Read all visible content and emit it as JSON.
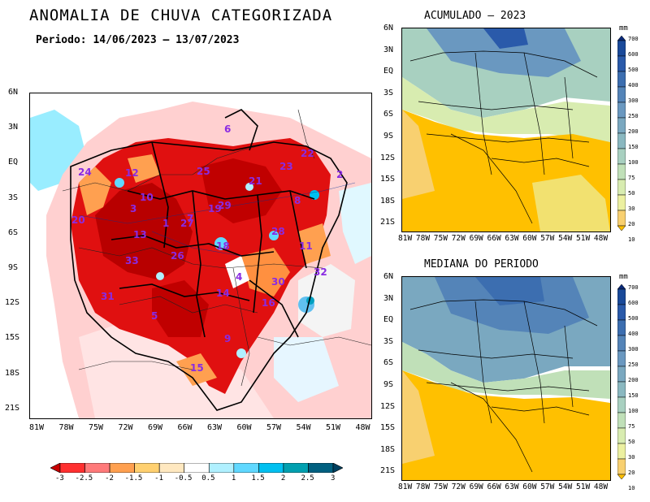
{
  "main_map": {
    "title": "ANOMALIA DE CHUVA CATEGORIZADA",
    "period": "Periodo: 14/06/2023 – 13/07/2023",
    "y_ticks": [
      "6N",
      "3N",
      "EQ",
      "3S",
      "6S",
      "9S",
      "12S",
      "15S",
      "18S",
      "21S"
    ],
    "x_ticks": [
      "81W",
      "78W",
      "75W",
      "72W",
      "69W",
      "66W",
      "63W",
      "60W",
      "57W",
      "54W",
      "51W",
      "48W"
    ],
    "basin_labels": [
      {
        "id": "basin-1",
        "text": "1"
      },
      {
        "id": "basin-2",
        "text": "2"
      },
      {
        "id": "basin-3",
        "text": "3"
      },
      {
        "id": "basin-4",
        "text": "4"
      },
      {
        "id": "basin-5",
        "text": "5"
      },
      {
        "id": "basin-6",
        "text": "6"
      },
      {
        "id": "basin-7",
        "text": "7"
      },
      {
        "id": "basin-8",
        "text": "8"
      },
      {
        "id": "basin-9",
        "text": "9"
      },
      {
        "id": "basin-10",
        "text": "10"
      },
      {
        "id": "basin-11",
        "text": "11"
      },
      {
        "id": "basin-12",
        "text": "12"
      },
      {
        "id": "basin-13",
        "text": "13"
      },
      {
        "id": "basin-14",
        "text": "14"
      },
      {
        "id": "basin-15",
        "text": "15"
      },
      {
        "id": "basin-16",
        "text": "16"
      },
      {
        "id": "basin-18",
        "text": "18"
      },
      {
        "id": "basin-19",
        "text": "19"
      },
      {
        "id": "basin-20",
        "text": "20"
      },
      {
        "id": "basin-21",
        "text": "21"
      },
      {
        "id": "basin-22",
        "text": "22"
      },
      {
        "id": "basin-23",
        "text": "23"
      },
      {
        "id": "basin-24",
        "text": "24"
      },
      {
        "id": "basin-25",
        "text": "25"
      },
      {
        "id": "basin-26",
        "text": "26"
      },
      {
        "id": "basin-27",
        "text": "27"
      },
      {
        "id": "basin-28",
        "text": "28"
      },
      {
        "id": "basin-29",
        "text": "29"
      },
      {
        "id": "basin-30",
        "text": "30"
      },
      {
        "id": "basin-31",
        "text": "31"
      },
      {
        "id": "basin-32",
        "text": "32"
      },
      {
        "id": "basin-33",
        "text": "33"
      }
    ],
    "label_color": "#8a2be2",
    "colorbar": {
      "labels": [
        "-3",
        "-2.5",
        "-2",
        "-1.5",
        "-1",
        "-0.5",
        "0.5",
        "1",
        "1.5",
        "2",
        "2.5",
        "3"
      ],
      "colors": [
        "#c80000",
        "#ff3030",
        "#ff7a7a",
        "#ffa050",
        "#ffd070",
        "#ffe8c0",
        "#ffffff",
        "#b0f0ff",
        "#60d8ff",
        "#00c0f0",
        "#00a0b0",
        "#006080",
        "#004060"
      ]
    }
  },
  "accumulated_map": {
    "title": "ACUMULADO – 2023",
    "y_ticks": [
      "6N",
      "3N",
      "EQ",
      "3S",
      "6S",
      "9S",
      "12S",
      "15S",
      "18S",
      "21S"
    ],
    "x_ticks": [
      "81W",
      "78W",
      "75W",
      "72W",
      "69W",
      "66W",
      "63W",
      "60W",
      "57W",
      "54W",
      "51W",
      "48W"
    ]
  },
  "median_map": {
    "title": "MEDIANA DO PERIODO",
    "y_ticks": [
      "6N",
      "3N",
      "EQ",
      "3S",
      "6S",
      "9S",
      "12S",
      "15S",
      "18S",
      "21S"
    ],
    "x_ticks": [
      "81W",
      "78W",
      "75W",
      "72W",
      "69W",
      "66W",
      "63W",
      "60W",
      "57W",
      "54W",
      "51W",
      "48W"
    ]
  },
  "precip_colorbar": {
    "unit": "mm",
    "labels": [
      "700",
      "600",
      "500",
      "400",
      "300",
      "250",
      "200",
      "150",
      "100",
      "75",
      "50",
      "30",
      "20",
      "10"
    ],
    "colors": [
      "#0a2a7a",
      "#1a4a9a",
      "#2a5aaa",
      "#3c6eb0",
      "#5484b8",
      "#6a98c0",
      "#7aa8c0",
      "#8ab8c0",
      "#a8d0c0",
      "#c0e0b8",
      "#d8ecb0",
      "#ecf0a0",
      "#f8d070",
      "#ffc000"
    ]
  }
}
